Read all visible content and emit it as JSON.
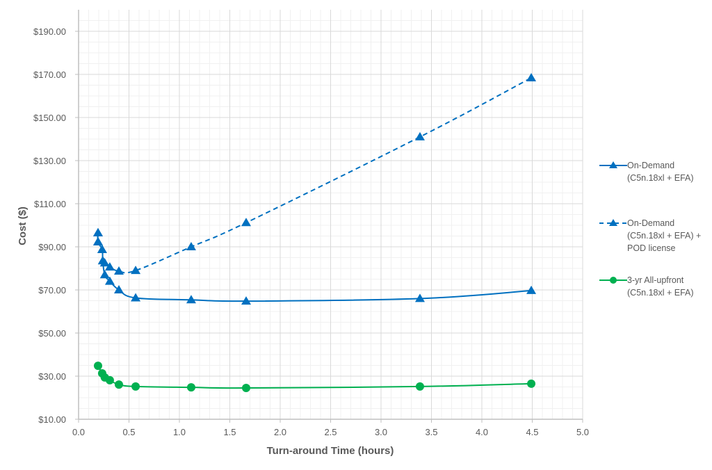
{
  "chart_data": {
    "type": "line",
    "title": "",
    "xlabel": "Turn-around Time (hours)",
    "ylabel": "Cost ($)",
    "xlim": [
      0,
      5
    ],
    "ylim": [
      10,
      190
    ],
    "x_ticks": [
      "0.0",
      "0.5",
      "1.0",
      "1.5",
      "2.0",
      "2.5",
      "3.0",
      "3.5",
      "4.0",
      "4.5",
      "5.0"
    ],
    "y_ticks": [
      "$10.00",
      "$30.00",
      "$50.00",
      "$70.00",
      "$90.00",
      "$110.00",
      "$130.00",
      "$150.00",
      "$170.00",
      "$190.00"
    ],
    "grid": true,
    "legend_position": "right",
    "series": [
      {
        "name": "On-Demand (C5n.18xl + EFA)",
        "color": "#0070C0",
        "line_style": "solid",
        "marker": "triangle",
        "x": [
          0.193,
          0.193,
          0.234,
          0.24,
          0.26,
          0.31,
          0.4,
          0.566,
          1.117,
          1.662,
          3.386,
          4.49
        ],
        "y": [
          96.5,
          92.3,
          88.7,
          83.5,
          77.0,
          74.0,
          70.0,
          66.3,
          65.4,
          64.8,
          66.0,
          69.7
        ]
      },
      {
        "name": "On-Demand (C5n.18xl + EFA) + POD license",
        "color": "#0070C0",
        "line_style": "dashed",
        "marker": "triangle",
        "x": [
          0.193,
          0.193,
          0.234,
          0.24,
          0.26,
          0.31,
          0.4,
          0.566,
          1.117,
          1.662,
          3.386,
          4.49
        ],
        "y": [
          96.5,
          92.3,
          88.7,
          83.5,
          82.5,
          80.6,
          78.7,
          79.0,
          90.0,
          101.2,
          141.0,
          168.4
        ]
      },
      {
        "name": "3-yr All-upfront (C5n.18xl + EFA)",
        "color": "#00B050",
        "line_style": "solid",
        "marker": "circle",
        "x": [
          0.193,
          0.234,
          0.26,
          0.31,
          0.4,
          0.566,
          1.117,
          1.662,
          3.386,
          4.49
        ],
        "y": [
          34.8,
          31.3,
          29.4,
          28.1,
          26.1,
          25.2,
          24.8,
          24.5,
          25.2,
          26.5
        ]
      }
    ]
  },
  "legend": {
    "items": [
      {
        "label": "On-Demand\n(C5n.18xl + EFA)"
      },
      {
        "label": "On-Demand\n(C5n.18xl + EFA) +\nPOD license"
      },
      {
        "label": "3-yr All-upfront\n(C5n.18xl + EFA)"
      }
    ]
  }
}
